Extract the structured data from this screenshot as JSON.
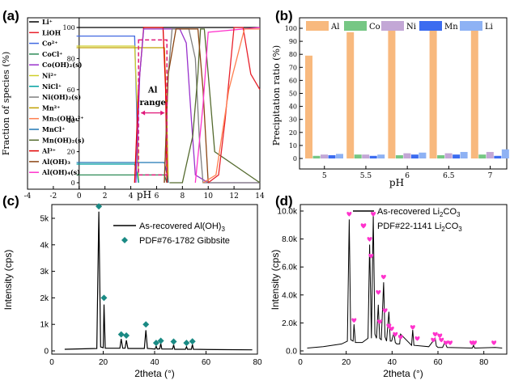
{
  "chart_data": [
    {
      "panel": "(a)",
      "type": "line",
      "xlabel": "pH",
      "ylabel": "Fraction of species (%)",
      "xlim": [
        -4,
        14
      ],
      "ylim": [
        0,
        100
      ],
      "xticks": [
        "-4",
        "-2",
        "0",
        "2",
        "4",
        "6",
        "8",
        "10",
        "12",
        "14"
      ],
      "yticks": [
        "0",
        "20",
        "40",
        "60",
        "80",
        "100"
      ],
      "annotation": "Al range",
      "annotation_range": [
        4.6,
        6.8
      ],
      "legend": [
        "Li⁺",
        "LiOH",
        "Co²⁺",
        "CoCl⁺",
        "Co(OH)₂(s)",
        "Ni²⁺",
        "NiCl⁺",
        "Ni(OH)₂(s)",
        "Mn²⁺",
        "Mn₃(OH)₄²⁺",
        "MnCl⁺",
        "Mn(OH)₂(s)",
        "Al³⁺",
        "Al(OH)₃",
        "Al(OH)₄(s)"
      ],
      "colors": [
        "#000000",
        "#e8212b",
        "#4169e1",
        "#2e8b57",
        "#9932cc",
        "#cfcf2a",
        "#00a0a0",
        "#7f7f7f",
        "#c0a000",
        "#ff7f50",
        "#1f77b4",
        "#556b2f",
        "#e00000",
        "#8b4513",
        "#ff33cc"
      ],
      "series": [
        {
          "name": "Li⁺",
          "x": [
            -0.2,
            14
          ],
          "y": [
            100,
            100
          ]
        },
        {
          "name": "Co²⁺",
          "x": [
            -0.2,
            4.3,
            4.45,
            4.6
          ],
          "y": [
            94.5,
            94.5,
            50,
            0
          ]
        },
        {
          "name": "CoCl⁺",
          "x": [
            -0.2,
            6.6,
            6.7,
            6.8
          ],
          "y": [
            5,
            5,
            2.5,
            0
          ]
        },
        {
          "name": "Ni²⁺",
          "x": [
            -0.2,
            4.3,
            4.5,
            4.6
          ],
          "y": [
            88,
            88,
            50,
            0
          ]
        },
        {
          "name": "NiCl⁺",
          "x": [
            -0.2,
            4.3,
            4.5,
            4.6
          ],
          "y": [
            12,
            12,
            6,
            0
          ]
        },
        {
          "name": "Mn²⁺",
          "x": [
            -0.2,
            6.6,
            6.8,
            6.9
          ],
          "y": [
            87,
            87,
            40,
            0
          ]
        },
        {
          "name": "MnCl⁺",
          "x": [
            -0.2,
            6.6,
            6.8,
            6.9
          ],
          "y": [
            13,
            13,
            6,
            0
          ]
        },
        {
          "name": "Al³⁺",
          "x": [
            4.3,
            4.6,
            5.0,
            6.5,
            6.7,
            6.8
          ],
          "y": [
            0,
            60,
            100,
            100,
            60,
            0
          ]
        },
        {
          "name": "Co(OH)₂(s)",
          "x": [
            4.4,
            4.7,
            5.0,
            7.8,
            8.3,
            8.7,
            9.0,
            10.0,
            14
          ],
          "y": [
            0,
            70,
            99,
            99,
            90,
            40,
            5,
            0,
            0
          ]
        },
        {
          "name": "Ni(OH)₂(s)",
          "x": [
            6.6,
            6.9,
            7.2,
            8.5,
            9.0,
            9.3,
            9.6,
            14
          ],
          "y": [
            0,
            70,
            99,
            99,
            80,
            30,
            0,
            0
          ]
        },
        {
          "name": "Mn(OH)₂(s)",
          "x": [
            7.0,
            8.0,
            8.8,
            9.2,
            9.4,
            9.7,
            10.0,
            10.5,
            14
          ],
          "y": [
            0,
            0,
            30,
            70,
            99,
            99,
            70,
            20,
            0
          ]
        },
        {
          "name": "Al(OH)₃",
          "x": [
            6.6,
            6.9,
            7.5,
            9.2,
            9.6,
            10.0
          ],
          "y": [
            0,
            70,
            99,
            99,
            60,
            0
          ]
        },
        {
          "name": "Al(OH)₄(s)",
          "x": [
            9.0,
            9.6,
            10.0,
            14
          ],
          "y": [
            0,
            50,
            97,
            100
          ]
        },
        {
          "name": "LiOH",
          "x": [
            10,
            10.8,
            11.3,
            12.0,
            12.7,
            13.3,
            14
          ],
          "y": [
            0,
            5,
            40,
            100,
            100,
            70,
            60
          ]
        },
        {
          "name": "Mn₃(OH)₄²⁺",
          "x": [
            9.6,
            10.6,
            11.6,
            12.8,
            14
          ],
          "y": [
            0,
            5,
            60,
            99,
            99
          ]
        }
      ]
    },
    {
      "panel": "(b)",
      "type": "bar",
      "xlabel": "pH",
      "ylabel": "Precipitation ratio (%)",
      "ylim": [
        0,
        100
      ],
      "yticks": [
        "0",
        "10",
        "20",
        "30",
        "40",
        "50",
        "60",
        "70",
        "80",
        "90",
        "100"
      ],
      "categories": [
        "5",
        "5.5",
        "6",
        "6.5",
        "7"
      ],
      "series": [
        {
          "name": "Al",
          "color": "#f8b97e",
          "values": [
            79,
            97,
            99,
            99.5,
            99.5
          ]
        },
        {
          "name": "Co",
          "color": "#76c784",
          "values": [
            2,
            3,
            2.5,
            2.5,
            3
          ]
        },
        {
          "name": "Ni",
          "color": "#c3a7d6",
          "values": [
            3,
            3,
            4,
            4,
            5
          ]
        },
        {
          "name": "Mn",
          "color": "#3c6cf0",
          "values": [
            2.5,
            2,
            3,
            3,
            2
          ]
        },
        {
          "name": "Li",
          "color": "#8eb2f4",
          "values": [
            3.5,
            3,
            4.5,
            5,
            7
          ]
        }
      ]
    },
    {
      "panel": "(c)",
      "type": "line",
      "xlabel": "2theta (°)",
      "ylabel": "Intensity (cps)",
      "xlim": [
        0,
        80
      ],
      "ylim": [
        0,
        5600
      ],
      "xticks": [
        "0",
        "20",
        "40",
        "60",
        "80"
      ],
      "yticks": [
        "0",
        "1k",
        "2k",
        "3k",
        "4k",
        "5k"
      ],
      "series": [
        {
          "name": "As-recovered Al(OH)₃",
          "x": [
            5,
            17.5,
            18.3,
            19.0,
            20.0,
            20.3,
            20.8,
            26.5,
            27.0,
            27.6,
            28.5,
            29.0,
            29.6,
            36.0,
            36.6,
            37.2,
            40.2,
            40.6,
            41.0,
            42.0,
            42.4,
            42.8,
            47.0,
            47.4,
            47.8,
            52.0,
            52.4,
            52.8,
            54.3,
            54.7,
            55.1,
            64,
            78
          ],
          "y": [
            60,
            90,
            5250,
            150,
            120,
            1750,
            100,
            100,
            450,
            100,
            100,
            400,
            90,
            90,
            780,
            90,
            70,
            180,
            70,
            80,
            280,
            70,
            70,
            230,
            60,
            60,
            160,
            60,
            60,
            240,
            60,
            50,
            40
          ]
        },
        {
          "name": "PDF#76-1782 Gibbsite",
          "x": [
            18.3,
            20.3,
            27.0,
            29.0,
            36.6,
            40.6,
            42.4,
            47.4,
            52.4,
            54.7
          ],
          "y": [
            5450,
            2000,
            620,
            580,
            1000,
            300,
            380,
            350,
            300,
            360
          ]
        }
      ]
    },
    {
      "panel": "(d)",
      "type": "line",
      "xlabel": "2theta (°)",
      "ylabel": "Intensity (cps)",
      "xlim": [
        0,
        90
      ],
      "ylim": [
        0,
        10500
      ],
      "xticks": [
        "0",
        "20",
        "40",
        "60",
        "80"
      ],
      "yticks": [
        "0.0",
        "2.0k",
        "4.0k",
        "6.0k",
        "8.0k",
        "10.0k"
      ],
      "series": [
        {
          "name": "As-recovered Li₂CO₃",
          "x": [
            3,
            10,
            18,
            20.5,
            21.3,
            22.0,
            23.0,
            23.4,
            24.0,
            27,
            29.5,
            30.2,
            31.0,
            31.8,
            32.5,
            33.2,
            34.0,
            34.6,
            35.3,
            36.3,
            36.9,
            37.6,
            38.6,
            39.2,
            39.8,
            40.8,
            41.4,
            42.0,
            43.3,
            43.7,
            48.5,
            49.0,
            49.5,
            56,
            58.8,
            59.3,
            60,
            62,
            63,
            64,
            75,
            75.5,
            76,
            85,
            88
          ],
          "y": [
            200,
            300,
            500,
            700,
            9400,
            800,
            700,
            1900,
            600,
            600,
            900,
            7600,
            900,
            9700,
            1200,
            900,
            3300,
            900,
            800,
            4900,
            1000,
            700,
            2800,
            700,
            700,
            1300,
            600,
            500,
            500,
            1200,
            400,
            1500,
            400,
            300,
            900,
            350,
            250,
            250,
            600,
            250,
            200,
            400,
            200,
            250,
            200
          ]
        },
        {
          "name": "PDF#22-1141 Li₂CO₃",
          "x": [
            21.3,
            23.4,
            30.2,
            30.8,
            31.8,
            34.0,
            34.6,
            36.3,
            36.9,
            38.6,
            39.8,
            41.4,
            43.7,
            49.0,
            51.0,
            58.0,
            58.8,
            60.8,
            61.5,
            63.5,
            65.3,
            74.8,
            75.9,
            84.4
          ],
          "y": [
            9800,
            2200,
            8000,
            6800,
            9800,
            4200,
            2100,
            5300,
            2900,
            1800,
            1600,
            1200,
            1000,
            1700,
            900,
            800,
            1200,
            1100,
            800,
            600,
            600,
            600,
            600,
            600
          ]
        }
      ]
    }
  ],
  "labels": {
    "a_panel": "(a)",
    "a_xlabel": "pH",
    "a_ylabel": "Fraction of species (%)",
    "a_annot1": "Al",
    "a_annot2": "range",
    "b_panel": "(b)",
    "b_xlabel": "pH",
    "b_ylabel": "Precipitation ratio (%)",
    "c_panel": "(c)",
    "c_xlabel": "2theta (°)",
    "c_ylabel": "Intensity (cps)",
    "c_legend1": "As-recovered Al(OH)",
    "c_legend1_sub": "3",
    "c_legend2": "PDF#76-1782 Gibbsite",
    "d_panel": "(d)",
    "d_xlabel": "2theta (°)",
    "d_ylabel": "Intensity (cps)",
    "d_legend1": "As-recovered Li",
    "d_legend1_sub": "2",
    "d_legend1_end": "CO",
    "d_legend1_sub2": "3",
    "d_legend2": "PDF#22-1141 Li",
    "d_legend2_sub": "2",
    "d_legend2_end": "CO",
    "d_legend2_sub2": "3"
  }
}
